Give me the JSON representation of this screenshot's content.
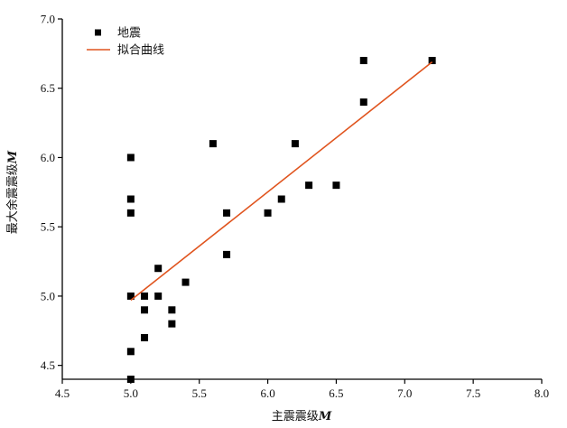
{
  "chart_data": {
    "type": "scatter",
    "xlabel": "主震震级M",
    "ylabel": "最大余震震级M",
    "xlim": [
      4.5,
      8.0
    ],
    "ylim": [
      4.4,
      7.0
    ],
    "x_ticks": [
      "4.5",
      "5.0",
      "5.5",
      "6.0",
      "6.5",
      "7.0",
      "7.5",
      "8.0"
    ],
    "y_ticks": [
      "4.5",
      "5.0",
      "5.5",
      "6.0",
      "6.5",
      "7.0"
    ],
    "grid": false,
    "legend_position": "top-left",
    "series": [
      {
        "name": "地震",
        "kind": "scatter",
        "marker": "square",
        "color": "#000000",
        "points": [
          [
            5.0,
            6.0
          ],
          [
            5.0,
            5.7
          ],
          [
            5.0,
            5.6
          ],
          [
            5.0,
            5.0
          ],
          [
            5.0,
            4.6
          ],
          [
            5.0,
            4.4
          ],
          [
            5.1,
            5.0
          ],
          [
            5.1,
            4.9
          ],
          [
            5.1,
            4.7
          ],
          [
            5.2,
            5.2
          ],
          [
            5.2,
            5.0
          ],
          [
            5.3,
            4.9
          ],
          [
            5.3,
            4.8
          ],
          [
            5.4,
            5.1
          ],
          [
            5.6,
            6.1
          ],
          [
            5.7,
            5.6
          ],
          [
            5.7,
            5.3
          ],
          [
            6.0,
            5.6
          ],
          [
            6.1,
            5.7
          ],
          [
            6.2,
            6.1
          ],
          [
            6.3,
            5.8
          ],
          [
            6.5,
            5.8
          ],
          [
            6.7,
            6.7
          ],
          [
            6.7,
            6.4
          ],
          [
            7.2,
            6.7
          ]
        ]
      },
      {
        "name": "拟合曲线",
        "kind": "line",
        "color": "#e0541e",
        "points": [
          [
            5.0,
            4.97
          ],
          [
            7.2,
            6.69
          ]
        ]
      }
    ]
  }
}
